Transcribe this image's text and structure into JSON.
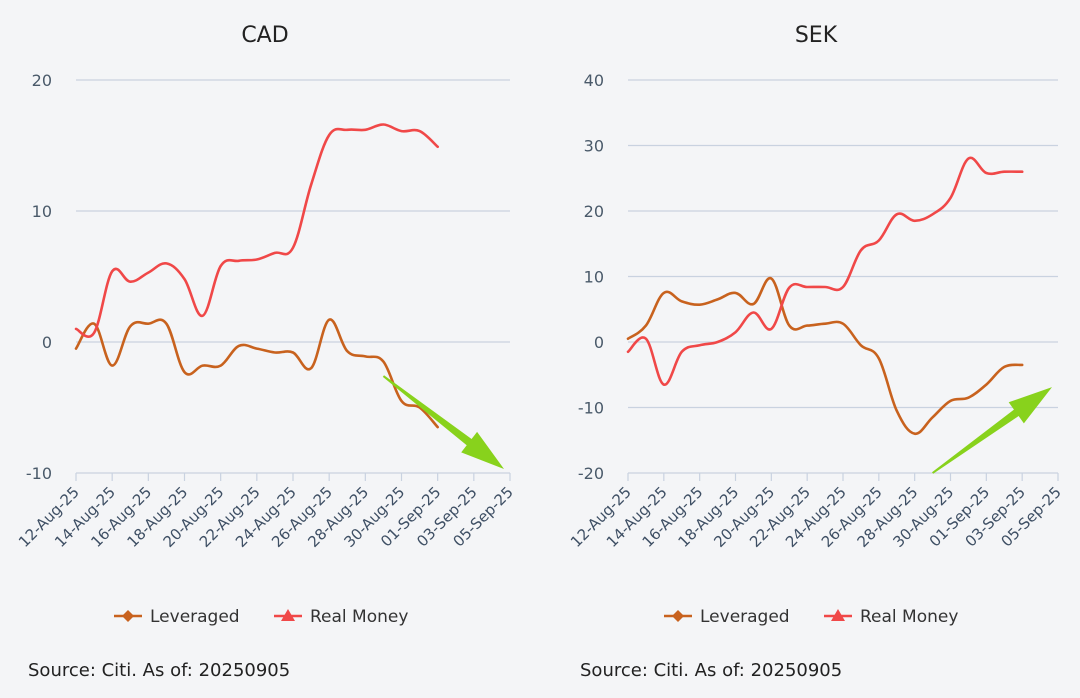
{
  "chart_data": [
    {
      "type": "line",
      "title": "CAD",
      "ylim": [
        -10,
        20
      ],
      "yticks": [
        -10,
        0,
        10,
        20
      ],
      "grid": true,
      "legend_position": "bottom",
      "x": [
        "12-Aug-25",
        "13-Aug-25",
        "14-Aug-25",
        "15-Aug-25",
        "16-Aug-25",
        "17-Aug-25",
        "18-Aug-25",
        "19-Aug-25",
        "20-Aug-25",
        "21-Aug-25",
        "22-Aug-25",
        "23-Aug-25",
        "24-Aug-25",
        "25-Aug-25",
        "26-Aug-25",
        "27-Aug-25",
        "28-Aug-25",
        "29-Aug-25",
        "30-Aug-25",
        "31-Aug-25",
        "01-Sep-25",
        "02-Sep-25",
        "03-Sep-25",
        "04-Sep-25",
        "05-Sep-25"
      ],
      "xtick_labels": [
        "12-Aug-25",
        "14-Aug-25",
        "16-Aug-25",
        "18-Aug-25",
        "20-Aug-25",
        "22-Aug-25",
        "24-Aug-25",
        "26-Aug-25",
        "28-Aug-25",
        "30-Aug-25",
        "01-Sep-25",
        "03-Sep-25",
        "05-Sep-25"
      ],
      "series": [
        {
          "name": "Leveraged",
          "color": "#c8621e",
          "marker": "diamond",
          "values": [
            -0.5,
            1.4,
            -1.8,
            1.2,
            1.4,
            1.4,
            -2.3,
            -1.8,
            -1.8,
            -0.3,
            -0.5,
            -0.8,
            -0.8,
            -2.0,
            1.7,
            -0.7,
            -1.1,
            -1.5,
            -4.5,
            -5.0,
            -6.5,
            null,
            null,
            null,
            null
          ]
        },
        {
          "name": "Real Money",
          "color": "#f04848",
          "marker": "triangle",
          "values": [
            1.0,
            0.7,
            5.4,
            4.6,
            5.3,
            6.0,
            4.8,
            2.0,
            5.8,
            6.2,
            6.3,
            6.8,
            7.2,
            12.0,
            15.8,
            16.2,
            16.2,
            16.6,
            16.1,
            16.1,
            14.9,
            null,
            null,
            null,
            null
          ]
        }
      ],
      "annotations": [
        {
          "type": "arrow",
          "color": "#88d21c",
          "from_x": "29-Aug-25",
          "from_y": -2.6,
          "to_x": "05-Sep-25",
          "to_y": -10
        }
      ],
      "source": "Source: Citi. As of: 20250905"
    },
    {
      "type": "line",
      "title": "SEK",
      "ylim": [
        -20,
        40
      ],
      "yticks": [
        -20,
        -10,
        0,
        10,
        20,
        30,
        40
      ],
      "grid": true,
      "legend_position": "bottom",
      "x": [
        "12-Aug-25",
        "13-Aug-25",
        "14-Aug-25",
        "15-Aug-25",
        "16-Aug-25",
        "17-Aug-25",
        "18-Aug-25",
        "19-Aug-25",
        "20-Aug-25",
        "21-Aug-25",
        "22-Aug-25",
        "23-Aug-25",
        "24-Aug-25",
        "25-Aug-25",
        "26-Aug-25",
        "27-Aug-25",
        "28-Aug-25",
        "29-Aug-25",
        "30-Aug-25",
        "31-Aug-25",
        "01-Sep-25",
        "02-Sep-25",
        "03-Sep-25",
        "04-Sep-25",
        "05-Sep-25"
      ],
      "xtick_labels": [
        "12-Aug-25",
        "14-Aug-25",
        "16-Aug-25",
        "18-Aug-25",
        "20-Aug-25",
        "22-Aug-25",
        "24-Aug-25",
        "26-Aug-25",
        "28-Aug-25",
        "30-Aug-25",
        "01-Sep-25",
        "03-Sep-25",
        "05-Sep-25"
      ],
      "series": [
        {
          "name": "Leveraged",
          "color": "#c8621e",
          "marker": "diamond",
          "values": [
            0.5,
            2.5,
            7.5,
            6.2,
            5.7,
            6.5,
            7.5,
            5.8,
            9.7,
            2.5,
            2.5,
            2.8,
            2.8,
            -0.5,
            -2.5,
            -10.5,
            -14.0,
            -11.5,
            -9.0,
            -8.5,
            -6.5,
            -3.8,
            -3.5,
            null,
            null
          ]
        },
        {
          "name": "Real Money",
          "color": "#f04848",
          "marker": "triangle",
          "values": [
            -1.5,
            0.5,
            -6.5,
            -1.5,
            -0.5,
            0.0,
            1.5,
            4.5,
            2.0,
            8.3,
            8.4,
            8.4,
            8.4,
            14.0,
            15.5,
            19.5,
            18.5,
            19.5,
            22.0,
            28.0,
            25.8,
            26.0,
            26.0,
            null,
            null
          ]
        }
      ],
      "annotations": [
        {
          "type": "arrow",
          "color": "#88d21c",
          "from_x": "29-Aug-25",
          "from_y": -20,
          "to_x": "05-Sep-25",
          "to_y": -7.5
        }
      ],
      "source": "Source: Citi. As of: 20250905"
    }
  ]
}
